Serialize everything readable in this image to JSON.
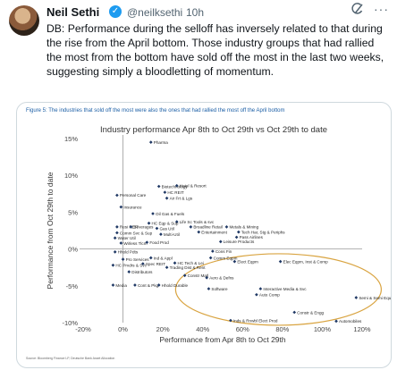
{
  "tweet": {
    "author_name": "Neil Sethi",
    "handle": "@neilksethi",
    "separator": "·",
    "time": "10h",
    "text": "DB: Performance during the selloff has inversely related to that during the rise from the April bottom. Those industry groups that had rallied the most from the bottom have sold off the most in the last two weeks, suggesting simply a bloodletting of momentum."
  },
  "icons": {
    "verified": "verified-badge-icon",
    "grok": "grok-icon",
    "more": "more-icon"
  },
  "colors": {
    "accent": "#1d9bf0",
    "caption": "#1c5fa6",
    "marker": "#1f3864",
    "highlight": "#d9a441"
  },
  "figure": {
    "caption": "Figure 5: The industries that sold off the most were also the ones that had rallied the most off the April bottom",
    "source": "Source: Bloomberg Finance LP, Deutsche Bank Asset Allocation"
  },
  "chart_data": {
    "type": "scatter",
    "title": "Industry performance Apr 8th to Oct 29th vs Oct 29th to date",
    "xlabel": "Performance from Apr 8th to Oct 29th",
    "ylabel": "Performance from Oct 29th to date",
    "xlim": [
      -20,
      120
    ],
    "ylim": [
      -10,
      15
    ],
    "xticks": [
      -20,
      0,
      20,
      40,
      60,
      80,
      100,
      120
    ],
    "xtick_labels": [
      "-20%",
      "0%",
      "20%",
      "40%",
      "60%",
      "80%",
      "100%",
      "120%"
    ],
    "yticks": [
      -10,
      -5,
      0,
      5,
      10,
      15
    ],
    "ytick_labels": [
      "-10%",
      "-5%",
      "0%",
      "5%",
      "10%",
      "15%"
    ],
    "grid": false,
    "annotations": [
      "highlight ellipse around high-momentum groups"
    ],
    "points": [
      {
        "label": "Pharma",
        "x": 14,
        "y": 14.5
      },
      {
        "label": "Biotechnology",
        "x": 18,
        "y": 8.5
      },
      {
        "label": "Hotel & Resort",
        "x": 27,
        "y": 8.6
      },
      {
        "label": "HC REIT",
        "x": 21,
        "y": 7.7
      },
      {
        "label": "Air Frt & Lgs",
        "x": 22,
        "y": 6.9
      },
      {
        "label": "Personal Care",
        "x": -3,
        "y": 7.3
      },
      {
        "label": "Insurance",
        "x": -1,
        "y": 5.7
      },
      {
        "label": "Oil Gas & Fuels",
        "x": 15,
        "y": 4.8
      },
      {
        "label": "Life Sc Tools & svc",
        "x": 27,
        "y": 3.7
      },
      {
        "label": "HC Eqp & Sup",
        "x": 13,
        "y": 3.5
      },
      {
        "label": "Gas Util",
        "x": 17,
        "y": 2.8
      },
      {
        "label": "Multi-Util",
        "x": 19,
        "y": 2.0
      },
      {
        "label": "Resi REIT",
        "x": -3,
        "y": 3.0
      },
      {
        "label": "Beverages",
        "x": 4,
        "y": 3.0
      },
      {
        "label": "Comm Svc & Sup",
        "x": -3,
        "y": 2.2
      },
      {
        "label": "Water Util",
        "x": -4,
        "y": 1.5
      },
      {
        "label": "Wirless Tlcm",
        "x": -1,
        "y": 0.8
      },
      {
        "label": "Food Prod",
        "x": 12,
        "y": 0.9
      },
      {
        "label": "Broadline Retail",
        "x": 34,
        "y": 3.0
      },
      {
        "label": "Metals & Mining",
        "x": 52,
        "y": 3.0
      },
      {
        "label": "Entertainment",
        "x": 38,
        "y": 2.3
      },
      {
        "label": "Tech Har, Stg & Periphs",
        "x": 58,
        "y": 2.3
      },
      {
        "label": "Pass Airlines",
        "x": 57,
        "y": 1.6
      },
      {
        "label": "Leisure Products",
        "x": 49,
        "y": 1.0
      },
      {
        "label": "Cons Fin",
        "x": 45,
        "y": -0.3
      },
      {
        "label": "Comm Eqpm",
        "x": 44,
        "y": -1.2
      },
      {
        "label": "Hhold Pdts",
        "x": -4,
        "y": -0.4
      },
      {
        "label": "Pro Services",
        "x": 0,
        "y": -1.4
      },
      {
        "label": "HC Prvdrs & Svc",
        "x": -5,
        "y": -2.2
      },
      {
        "label": "Ind & Appl",
        "x": 14,
        "y": -1.2
      },
      {
        "label": "Spec REIT",
        "x": 10,
        "y": -2.0
      },
      {
        "label": "HC Tech & Lei",
        "x": 26,
        "y": -1.9
      },
      {
        "label": "Trading Dist & Rent",
        "x": 22,
        "y": -2.5
      },
      {
        "label": "Distributors",
        "x": 3,
        "y": -3.1
      },
      {
        "label": "Media",
        "x": -5,
        "y": -4.9
      },
      {
        "label": "Cont & Pkg",
        "x": 6,
        "y": -4.9
      },
      {
        "label": "Hhold Durable",
        "x": 18,
        "y": -4.9
      },
      {
        "label": "Constr Matl",
        "x": 31,
        "y": -3.6
      },
      {
        "label": "Elect Eqpm",
        "x": 56,
        "y": -1.7
      },
      {
        "label": "Elec Eqpm, Inst & Comp",
        "x": 79,
        "y": -1.7
      },
      {
        "label": "Aero & Defns",
        "x": 42,
        "y": -3.9
      },
      {
        "label": "Software",
        "x": 43,
        "y": -5.4
      },
      {
        "label": "Interactive Media & Svc",
        "x": 69,
        "y": -5.4
      },
      {
        "label": "Auto Comp",
        "x": 67,
        "y": -6.2
      },
      {
        "label": "Semi & Semi Equip",
        "x": 117,
        "y": -6.6
      },
      {
        "label": "Constr & Engg",
        "x": 86,
        "y": -8.6
      },
      {
        "label": "Inds & Rnwbl Elect Prod",
        "x": 54,
        "y": -9.7
      },
      {
        "label": "Automobiles",
        "x": 107,
        "y": -9.8
      }
    ]
  }
}
